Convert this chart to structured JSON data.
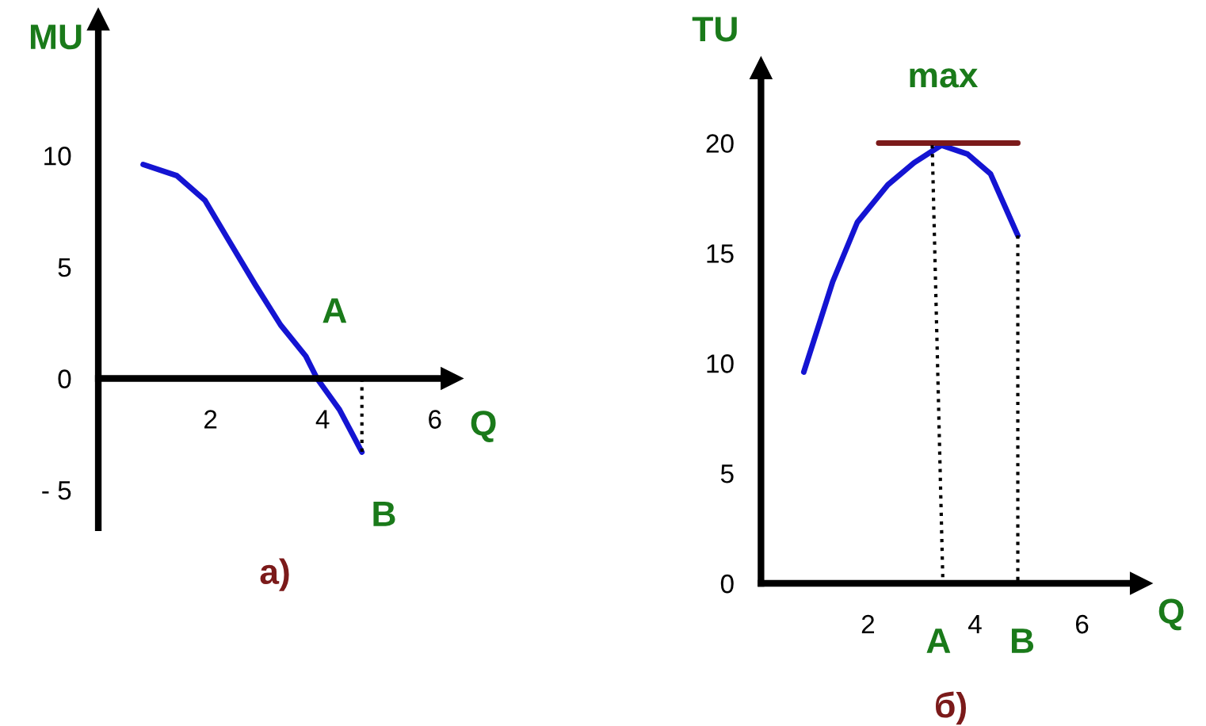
{
  "chart_data": [
    {
      "type": "line",
      "title": "а)",
      "xlabel": "Q",
      "ylabel": "MU",
      "xlim": [
        0,
        6.3
      ],
      "ylim": [
        -6.7,
        16.1
      ],
      "xticks": [
        2,
        4,
        6
      ],
      "yticks": [
        {
          "value": -5,
          "label": "- 5"
        },
        0,
        5,
        10
      ],
      "series": [
        {
          "x": [
            0.8,
            1.4,
            1.9,
            2.3,
            2.8,
            3.25,
            3.7,
            3.9,
            4.3,
            4.7
          ],
          "values": [
            9.6,
            9.1,
            8.0,
            6.3,
            4.2,
            2.4,
            1.0,
            0,
            -1.4,
            -3.3
          ],
          "color": "#1414d2",
          "line_style": "solid"
        },
        {
          "x": [
            4.7,
            4.7
          ],
          "values": [
            0,
            -3.3
          ],
          "color": "#000000",
          "line_style": "dotted"
        }
      ],
      "annotations": [
        {
          "text": "A",
          "x": 3.9,
          "y": 0
        },
        {
          "text": "B",
          "x": 4.7,
          "y": -3.3
        }
      ]
    },
    {
      "type": "line",
      "title": "б)",
      "xlabel": "Q",
      "ylabel": "TU",
      "xlim": [
        0,
        7.1
      ],
      "ylim": [
        0,
        23.4
      ],
      "xticks": [
        2,
        4,
        6
      ],
      "yticks": [
        0,
        5,
        10,
        15,
        20
      ],
      "series": [
        {
          "x": [
            0.8,
            1.34,
            1.8,
            2.37,
            2.86,
            3.37,
            3.86,
            4.29,
            4.8
          ],
          "values": [
            9.6,
            13.7,
            16.4,
            18.1,
            19.1,
            19.9,
            19.5,
            18.6,
            15.8
          ],
          "color": "#1414d2",
          "line_style": "solid"
        },
        {
          "x": [
            2.2,
            4.8
          ],
          "values": [
            20,
            20
          ],
          "color": "#7b1a1a",
          "line_style": "solid"
        },
        {
          "x": [
            3.2,
            3.4
          ],
          "values": [
            19.9,
            0
          ],
          "color": "#000000",
          "line_style": "dotted"
        },
        {
          "x": [
            4.8,
            4.8
          ],
          "values": [
            15.8,
            0
          ],
          "color": "#000000",
          "line_style": "dotted"
        }
      ],
      "annotations": [
        {
          "text": "max",
          "x": 3.4,
          "y": 20
        },
        {
          "text": "A",
          "x": 3.4,
          "y": 0
        },
        {
          "text": "B",
          "x": 4.8,
          "y": 0
        }
      ]
    }
  ]
}
